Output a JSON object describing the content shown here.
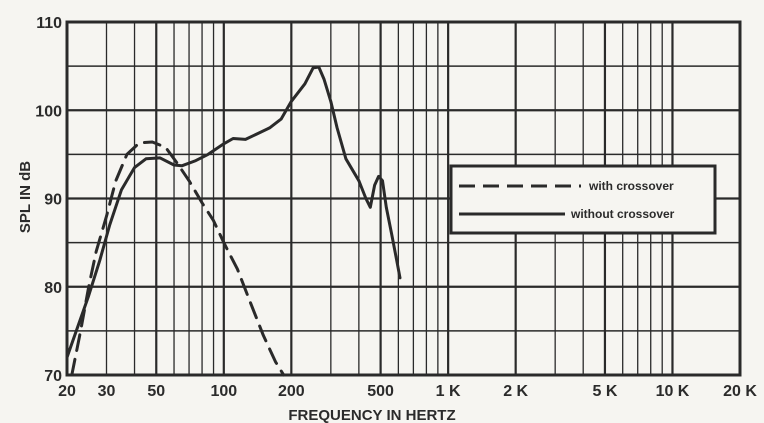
{
  "chart_data": {
    "type": "line",
    "title": "",
    "xlabel": "FREQUENCY IN HERTZ",
    "ylabel": "SPL IN dB",
    "x_scale": "log",
    "x_range_hz": [
      20,
      20000
    ],
    "ylim": [
      70,
      110
    ],
    "grid": true,
    "legend_position": "center-right",
    "x_ticks": [
      {
        "value": 20,
        "label": "20"
      },
      {
        "value": 30,
        "label": "30"
      },
      {
        "value": 50,
        "label": "50"
      },
      {
        "value": 100,
        "label": "100"
      },
      {
        "value": 200,
        "label": "200"
      },
      {
        "value": 500,
        "label": "500"
      },
      {
        "value": 1000,
        "label": "1 K"
      },
      {
        "value": 2000,
        "label": "2 K"
      },
      {
        "value": 5000,
        "label": "5 K"
      },
      {
        "value": 10000,
        "label": "10 K"
      },
      {
        "value": 20000,
        "label": "20 K"
      }
    ],
    "y_ticks": [
      {
        "value": 70,
        "label": "70"
      },
      {
        "value": 80,
        "label": "80"
      },
      {
        "value": 90,
        "label": "90"
      },
      {
        "value": 100,
        "label": "100"
      },
      {
        "value": 110,
        "label": "110"
      }
    ],
    "series": [
      {
        "name": "with crossover",
        "style": "dashed",
        "color": "#2a2a2a",
        "points": [
          [
            21,
            70.0
          ],
          [
            23,
            75.0
          ],
          [
            25,
            80.0
          ],
          [
            27,
            84.0
          ],
          [
            30,
            88.0
          ],
          [
            33,
            92.0
          ],
          [
            37,
            95.0
          ],
          [
            42,
            96.3
          ],
          [
            48,
            96.4
          ],
          [
            55,
            95.8
          ],
          [
            62,
            94.0
          ],
          [
            70,
            92.0
          ],
          [
            80,
            89.5
          ],
          [
            90,
            87.5
          ],
          [
            100,
            85.0
          ],
          [
            115,
            82.0
          ],
          [
            130,
            78.5
          ],
          [
            150,
            74.5
          ],
          [
            170,
            71.5
          ],
          [
            185,
            70.0
          ]
        ]
      },
      {
        "name": "without crossover",
        "style": "solid",
        "color": "#2a2a2a",
        "points": [
          [
            20,
            72.0
          ],
          [
            22,
            75.0
          ],
          [
            25,
            79.0
          ],
          [
            28,
            83.0
          ],
          [
            31,
            87.0
          ],
          [
            35,
            91.0
          ],
          [
            40,
            93.5
          ],
          [
            45,
            94.5
          ],
          [
            52,
            94.6
          ],
          [
            60,
            93.8
          ],
          [
            65,
            93.7
          ],
          [
            75,
            94.3
          ],
          [
            85,
            95.0
          ],
          [
            100,
            96.2
          ],
          [
            110,
            96.8
          ],
          [
            125,
            96.7
          ],
          [
            140,
            97.3
          ],
          [
            160,
            98.0
          ],
          [
            180,
            99.0
          ],
          [
            200,
            101.0
          ],
          [
            230,
            103.0
          ],
          [
            250,
            104.8
          ],
          [
            265,
            104.9
          ],
          [
            280,
            103.5
          ],
          [
            300,
            101.0
          ],
          [
            320,
            98.0
          ],
          [
            350,
            94.5
          ],
          [
            400,
            92.0
          ],
          [
            430,
            90.0
          ],
          [
            450,
            89.0
          ],
          [
            470,
            91.5
          ],
          [
            490,
            92.5
          ],
          [
            510,
            92.0
          ],
          [
            530,
            89.0
          ],
          [
            560,
            86.0
          ],
          [
            590,
            83.0
          ],
          [
            610,
            81.0
          ]
        ]
      }
    ]
  }
}
